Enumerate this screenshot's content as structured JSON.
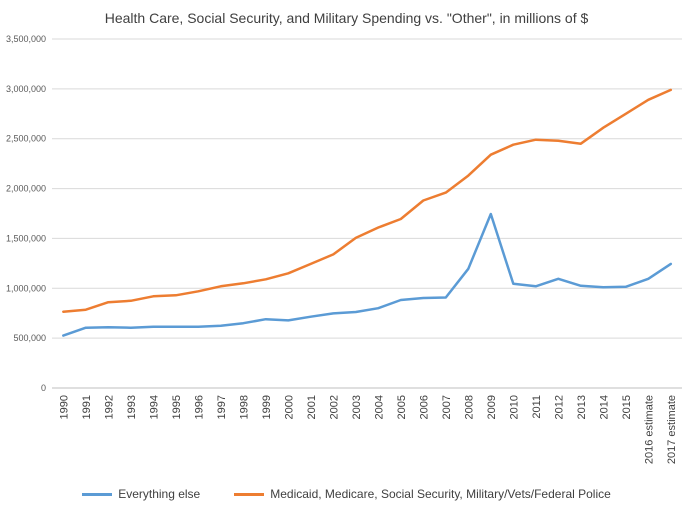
{
  "chart_data": {
    "type": "line",
    "title": "Health Care, Social Security, and Military Spending vs. \"Other\", in millions of $",
    "xlabel": "",
    "ylabel": "",
    "ylim": [
      0,
      3500000
    ],
    "yticks": [
      0,
      500000,
      1000000,
      1500000,
      2000000,
      2500000,
      3000000,
      3500000
    ],
    "ytick_labels": [
      "0",
      "500,000",
      "1,000,000",
      "1,500,000",
      "2,000,000",
      "2,500,000",
      "3,000,000",
      "3,500,000"
    ],
    "grid": true,
    "legend_position": "bottom",
    "categories": [
      "1990",
      "1991",
      "1992",
      "1993",
      "1994",
      "1995",
      "1996",
      "1997",
      "1998",
      "1999",
      "2000",
      "2001",
      "2002",
      "2003",
      "2004",
      "2005",
      "2006",
      "2007",
      "2008",
      "2009",
      "2010",
      "2011",
      "2012",
      "2013",
      "2014",
      "2015",
      "2016 estimate",
      "2017 estimate"
    ],
    "series": [
      {
        "name": "Everything else",
        "color": "#5B9BD5",
        "values": [
          525000,
          605000,
          610000,
          605000,
          615000,
          615000,
          615000,
          625000,
          650000,
          690000,
          678000,
          715000,
          748000,
          762000,
          800000,
          883000,
          903000,
          908000,
          1195000,
          1745000,
          1045000,
          1020000,
          1095000,
          1025000,
          1010000,
          1015000,
          1095000,
          1245000
        ]
      },
      {
        "name": "Medicaid, Medicare, Social Security, Military/Vets/Federal Police",
        "color": "#ED7D31",
        "values": [
          765000,
          785000,
          860000,
          875000,
          920000,
          930000,
          970000,
          1020000,
          1050000,
          1090000,
          1150000,
          1245000,
          1340000,
          1505000,
          1610000,
          1695000,
          1880000,
          1960000,
          2130000,
          2340000,
          2440000,
          2490000,
          2480000,
          2450000,
          2610000,
          2750000,
          2890000,
          2990000
        ]
      }
    ]
  }
}
